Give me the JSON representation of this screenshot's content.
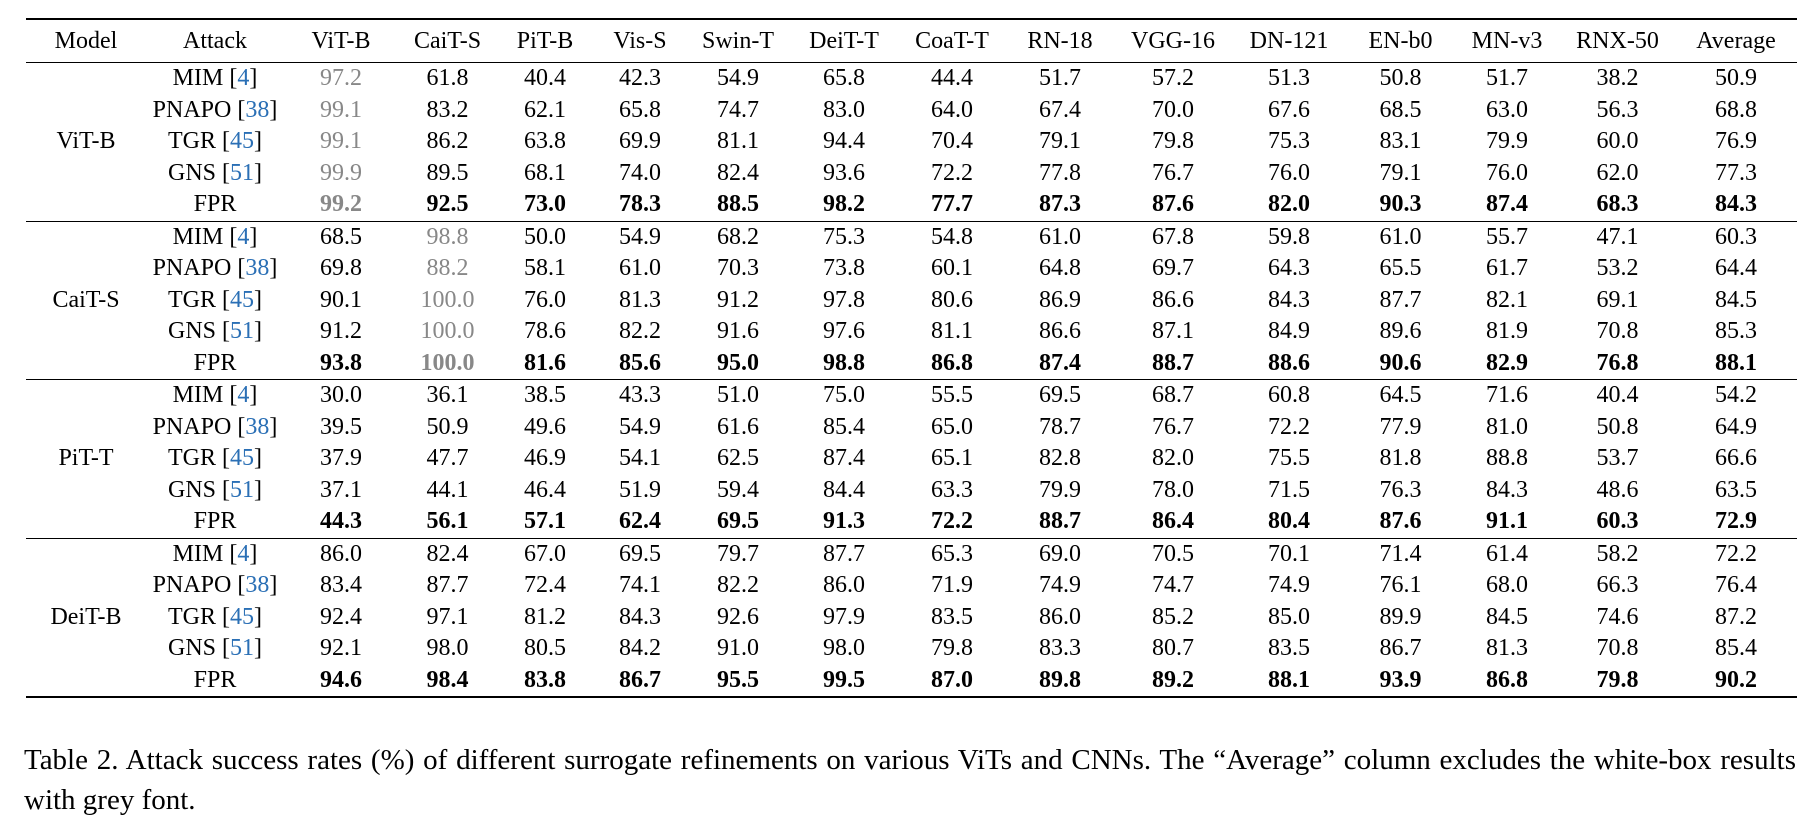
{
  "table": {
    "header": [
      "Model",
      "Attack",
      "ViT-B",
      "CaiT-S",
      "PiT-B",
      "Vis-S",
      "Swin-T",
      "DeiT-T",
      "CoaT-T",
      "RN-18",
      "VGG-16",
      "DN-121",
      "EN-b0",
      "MN-v3",
      "RNX-50",
      "Average"
    ],
    "groups": [
      {
        "model": "ViT-B",
        "rows": [
          {
            "attack": "MIM",
            "ref": "[4]",
            "values": [
              "97.2",
              "61.8",
              "40.4",
              "42.3",
              "54.9",
              "65.8",
              "44.4",
              "51.7",
              "57.2",
              "51.3",
              "50.8",
              "51.7",
              "38.2",
              "50.9"
            ]
          },
          {
            "attack": "PNAPO",
            "ref": "[38]",
            "values": [
              "99.1",
              "83.2",
              "62.1",
              "65.8",
              "74.7",
              "83.0",
              "64.0",
              "67.4",
              "70.0",
              "67.6",
              "68.5",
              "63.0",
              "56.3",
              "68.8"
            ]
          },
          {
            "attack": "TGR",
            "ref": "[45]",
            "values": [
              "99.1",
              "86.2",
              "63.8",
              "69.9",
              "81.1",
              "94.4",
              "70.4",
              "79.1",
              "79.8",
              "75.3",
              "83.1",
              "79.9",
              "60.0",
              "76.9"
            ]
          },
          {
            "attack": "GNS",
            "ref": "[51]",
            "values": [
              "99.9",
              "89.5",
              "68.1",
              "74.0",
              "82.4",
              "93.6",
              "72.2",
              "77.8",
              "76.7",
              "76.0",
              "79.1",
              "76.0",
              "62.0",
              "77.3"
            ]
          },
          {
            "attack": "FPR",
            "ref": null,
            "values": [
              "99.2",
              "92.5",
              "73.0",
              "78.3",
              "88.5",
              "98.2",
              "77.7",
              "87.3",
              "87.6",
              "82.0",
              "90.3",
              "87.4",
              "68.3",
              "84.3"
            ]
          }
        ]
      },
      {
        "model": "CaiT-S",
        "rows": [
          {
            "attack": "MIM",
            "ref": "[4]",
            "values": [
              "68.5",
              "98.8",
              "50.0",
              "54.9",
              "68.2",
              "75.3",
              "54.8",
              "61.0",
              "67.8",
              "59.8",
              "61.0",
              "55.7",
              "47.1",
              "60.3"
            ]
          },
          {
            "attack": "PNAPO",
            "ref": "[38]",
            "values": [
              "69.8",
              "88.2",
              "58.1",
              "61.0",
              "70.3",
              "73.8",
              "60.1",
              "64.8",
              "69.7",
              "64.3",
              "65.5",
              "61.7",
              "53.2",
              "64.4"
            ]
          },
          {
            "attack": "TGR",
            "ref": "[45]",
            "values": [
              "90.1",
              "100.0",
              "76.0",
              "81.3",
              "91.2",
              "97.8",
              "80.6",
              "86.9",
              "86.6",
              "84.3",
              "87.7",
              "82.1",
              "69.1",
              "84.5"
            ]
          },
          {
            "attack": "GNS",
            "ref": "[51]",
            "values": [
              "91.2",
              "100.0",
              "78.6",
              "82.2",
              "91.6",
              "97.6",
              "81.1",
              "86.6",
              "87.1",
              "84.9",
              "89.6",
              "81.9",
              "70.8",
              "85.3"
            ]
          },
          {
            "attack": "FPR",
            "ref": null,
            "values": [
              "93.8",
              "100.0",
              "81.6",
              "85.6",
              "95.0",
              "98.8",
              "86.8",
              "87.4",
              "88.7",
              "88.6",
              "90.6",
              "82.9",
              "76.8",
              "88.1"
            ]
          }
        ]
      },
      {
        "model": "PiT-T",
        "rows": [
          {
            "attack": "MIM",
            "ref": "[4]",
            "values": [
              "30.0",
              "36.1",
              "38.5",
              "43.3",
              "51.0",
              "75.0",
              "55.5",
              "69.5",
              "68.7",
              "60.8",
              "64.5",
              "71.6",
              "40.4",
              "54.2"
            ]
          },
          {
            "attack": "PNAPO",
            "ref": "[38]",
            "values": [
              "39.5",
              "50.9",
              "49.6",
              "54.9",
              "61.6",
              "85.4",
              "65.0",
              "78.7",
              "76.7",
              "72.2",
              "77.9",
              "81.0",
              "50.8",
              "64.9"
            ]
          },
          {
            "attack": "TGR",
            "ref": "[45]",
            "values": [
              "37.9",
              "47.7",
              "46.9",
              "54.1",
              "62.5",
              "87.4",
              "65.1",
              "82.8",
              "82.0",
              "75.5",
              "81.8",
              "88.8",
              "53.7",
              "66.6"
            ]
          },
          {
            "attack": "GNS",
            "ref": "[51]",
            "values": [
              "37.1",
              "44.1",
              "46.4",
              "51.9",
              "59.4",
              "84.4",
              "63.3",
              "79.9",
              "78.0",
              "71.5",
              "76.3",
              "84.3",
              "48.6",
              "63.5"
            ]
          },
          {
            "attack": "FPR",
            "ref": null,
            "values": [
              "44.3",
              "56.1",
              "57.1",
              "62.4",
              "69.5",
              "91.3",
              "72.2",
              "88.7",
              "86.4",
              "80.4",
              "87.6",
              "91.1",
              "60.3",
              "72.9"
            ]
          }
        ]
      },
      {
        "model": "DeiT-B",
        "rows": [
          {
            "attack": "MIM",
            "ref": "[4]",
            "values": [
              "86.0",
              "82.4",
              "67.0",
              "69.5",
              "79.7",
              "87.7",
              "65.3",
              "69.0",
              "70.5",
              "70.1",
              "71.4",
              "61.4",
              "58.2",
              "72.2"
            ]
          },
          {
            "attack": "PNAPO",
            "ref": "[38]",
            "values": [
              "83.4",
              "87.7",
              "72.4",
              "74.1",
              "82.2",
              "86.0",
              "71.9",
              "74.9",
              "74.7",
              "74.9",
              "76.1",
              "68.0",
              "66.3",
              "76.4"
            ]
          },
          {
            "attack": "TGR",
            "ref": "[45]",
            "values": [
              "92.4",
              "97.1",
              "81.2",
              "84.3",
              "92.6",
              "97.9",
              "83.5",
              "86.0",
              "85.2",
              "85.0",
              "89.9",
              "84.5",
              "74.6",
              "87.2"
            ]
          },
          {
            "attack": "GNS",
            "ref": "[51]",
            "values": [
              "92.1",
              "98.0",
              "80.5",
              "84.2",
              "91.0",
              "98.0",
              "79.8",
              "83.3",
              "80.7",
              "83.5",
              "86.7",
              "81.3",
              "70.8",
              "85.4"
            ]
          },
          {
            "attack": "FPR",
            "ref": null,
            "values": [
              "94.6",
              "98.4",
              "83.8",
              "86.7",
              "95.5",
              "99.5",
              "87.0",
              "89.8",
              "89.2",
              "88.1",
              "93.9",
              "86.8",
              "79.8",
              "90.2"
            ]
          }
        ]
      }
    ]
  },
  "caption": "Table 2.  Attack success rates (%) of different surrogate refinements on various ViTs and CNNs.  The “Average” column excludes the white-box results with grey font."
}
